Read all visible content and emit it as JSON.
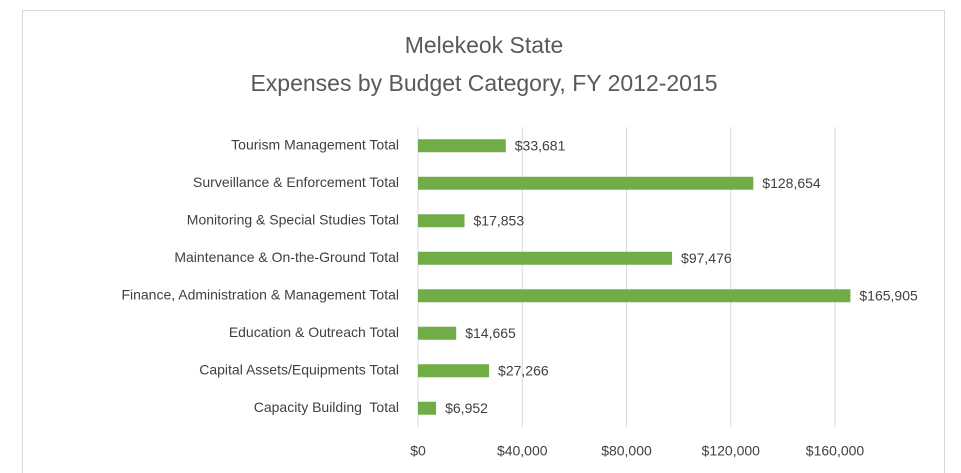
{
  "chart_data": {
    "type": "bar",
    "orientation": "horizontal",
    "title": [
      "Melekeok State",
      "Expenses by Budget Category, FY 2012-2015"
    ],
    "categories": [
      "Tourism Management Total",
      "Surveillance & Enforcement Total",
      "Monitoring & Special Studies Total",
      "Maintenance & On-the-Ground Total",
      "Finance, Administration & Management Total",
      "Education & Outreach Total",
      "Capital Assets/Equipments Total",
      "Capacity Building  Total"
    ],
    "values": [
      33681,
      128654,
      17853,
      97476,
      165905,
      14665,
      27266,
      6952
    ],
    "value_labels": [
      "$33,681",
      "$128,654",
      "$17,853",
      "$97,476",
      "$165,905",
      "$14,665",
      "$27,266",
      "$6,952"
    ],
    "color": "#70ad47",
    "xlim": [
      0,
      160000
    ],
    "xticks": [
      {
        "value": 0,
        "label": "$0"
      },
      {
        "value": 40000,
        "label": "$40,000"
      },
      {
        "value": 80000,
        "label": "$80,000"
      },
      {
        "value": 120000,
        "label": "$120,000"
      },
      {
        "value": 160000,
        "label": "$160,000"
      }
    ],
    "grid": true
  }
}
